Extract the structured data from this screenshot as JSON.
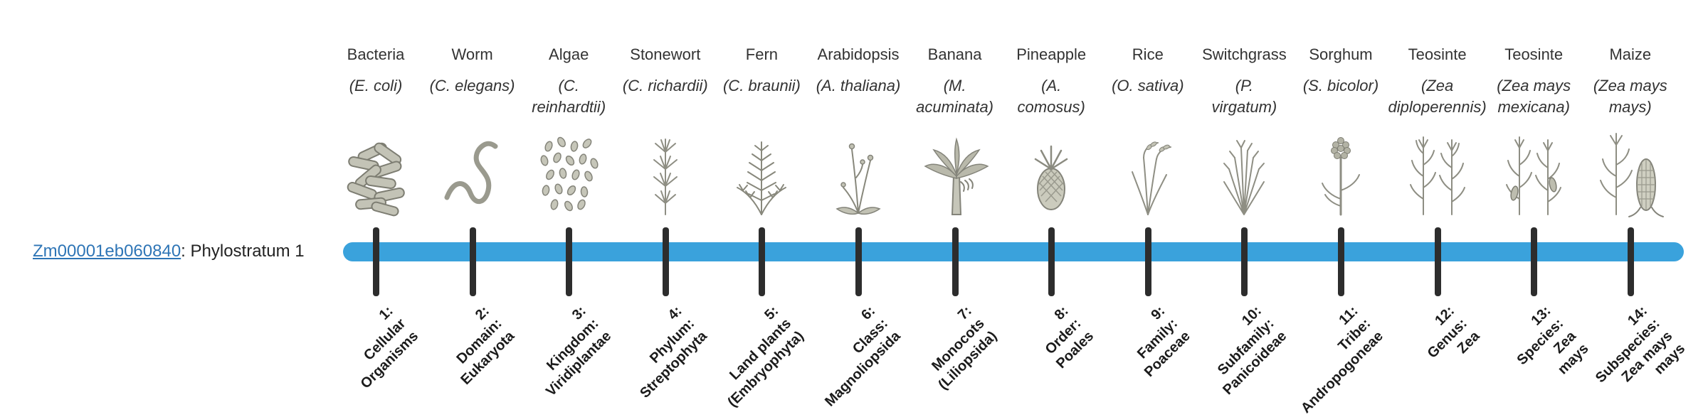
{
  "gene": {
    "id": "Zm00001eb060840",
    "suffix": ": Phylostratum 1",
    "link_color": "#2e75b6"
  },
  "timeline": {
    "bar_color": "#3aa2dc",
    "tick_color": "#2d2d2d"
  },
  "organisms": [
    {
      "name": "Bacteria",
      "sci_name": "(E. coli)",
      "icon": "bacteria",
      "stratum_label": "1:\nCellular\nOrganisms"
    },
    {
      "name": "Worm",
      "sci_name": "(C. elegans)",
      "icon": "worm",
      "stratum_label": "2:\nDomain:\nEukaryota"
    },
    {
      "name": "Algae",
      "sci_name": "(C.\nreinhardtii)",
      "icon": "algae",
      "stratum_label": "3:\nKingdom:\nViridiplantae"
    },
    {
      "name": "Stonewort",
      "sci_name": "(C. richardii)",
      "icon": "stonewort",
      "stratum_label": "4:\nPhylum:\nStreptophyta"
    },
    {
      "name": "Fern",
      "sci_name": "(C. braunii)",
      "icon": "fern",
      "stratum_label": "5:\nLand plants\n(Embryophyta)"
    },
    {
      "name": "Arabidopsis",
      "sci_name": "(A. thaliana)",
      "icon": "arabidopsis",
      "stratum_label": "6:\nClass:\nMagnoliopsida"
    },
    {
      "name": "Banana",
      "sci_name": "(M.\nacuminata)",
      "icon": "banana",
      "stratum_label": "7:\nMonocots\n(Liliopsida)"
    },
    {
      "name": "Pineapple",
      "sci_name": "(A.\ncomosus)",
      "icon": "pineapple",
      "stratum_label": "8:\nOrder:\nPoales"
    },
    {
      "name": "Rice",
      "sci_name": "(O. sativa)",
      "icon": "rice",
      "stratum_label": "9:\nFamily:\nPoaceae"
    },
    {
      "name": "Switchgrass",
      "sci_name": "(P.\nvirgatum)",
      "icon": "switchgrass",
      "stratum_label": "10:\nSubfamily:\nPanicoideae"
    },
    {
      "name": "Sorghum",
      "sci_name": "(S. bicolor)",
      "icon": "sorghum",
      "stratum_label": "11:\nTribe:\nAndropogoneae"
    },
    {
      "name": "Teosinte",
      "sci_name": "(Zea\ndiploperennis)",
      "icon": "teosinte-diploperennis",
      "stratum_label": "12:\nGenus:\nZea"
    },
    {
      "name": "Teosinte",
      "sci_name": "(Zea mays\nmexicana)",
      "icon": "teosinte-mexicana",
      "stratum_label": "13:\nSpecies:\nZea\nmays"
    },
    {
      "name": "Maize",
      "sci_name": "(Zea mays\nmays)",
      "icon": "maize",
      "stratum_label": "14:\nSubspecies:\nZea mays\nmays"
    }
  ]
}
